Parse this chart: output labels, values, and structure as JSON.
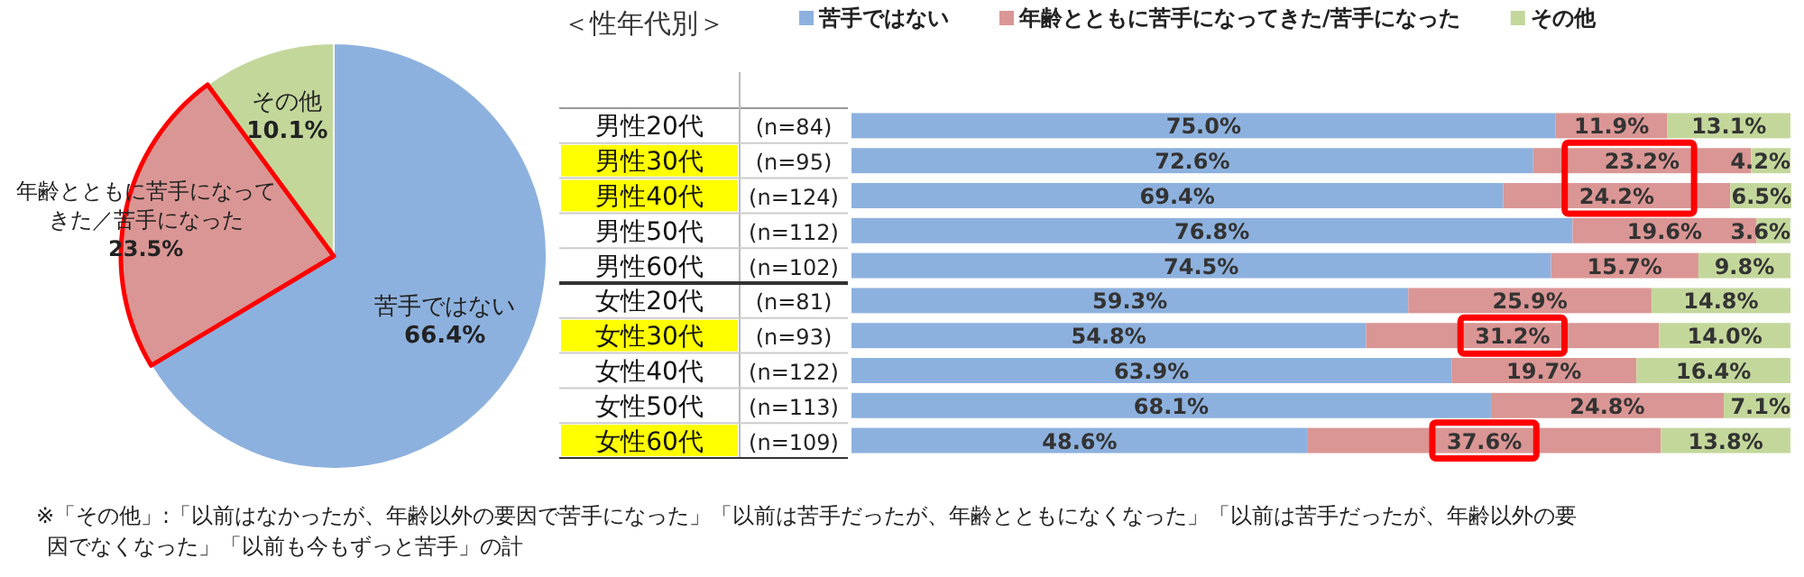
{
  "chart_data": [
    {
      "type": "pie",
      "categories": [
        "苦手ではない",
        "年齢とともに苦手になってきた／苦手になった",
        "その他"
      ],
      "values": [
        66.4,
        23.5,
        10.1
      ],
      "colors": [
        "#8db1de",
        "#da9694",
        "#c4d79b"
      ],
      "value_labels": [
        "66.4%",
        "23.5%",
        "10.1%"
      ]
    },
    {
      "type": "bar",
      "orientation": "horizontal",
      "stacked": true,
      "title": "＜性年代別＞",
      "legend": "top",
      "categories": [
        "男性20代 (n=84)",
        "男性30代 (n=95)",
        "男性40代 (n=124)",
        "男性50代 (n=112)",
        "男性60代 (n=102)",
        "女性20代 (n=81)",
        "女性30代 (n=93)",
        "女性40代 (n=122)",
        "女性50代 (n=113)",
        "女性60代 (n=109)"
      ],
      "series": [
        {
          "name": "苦手ではない",
          "color": "#8db1de",
          "values": [
            75.0,
            72.6,
            69.4,
            76.8,
            74.5,
            59.3,
            54.8,
            63.9,
            68.1,
            48.6
          ],
          "value_labels": [
            "75.0%",
            "72.6%",
            "69.4%",
            "76.8%",
            "74.5%",
            "59.3%",
            "54.8%",
            "63.9%",
            "68.1%",
            "48.6%"
          ]
        },
        {
          "name": "年齢とともに苦手になってきた/苦手になった",
          "color": "#da9694",
          "values": [
            11.9,
            23.2,
            24.2,
            19.6,
            15.7,
            25.9,
            31.2,
            19.7,
            24.8,
            37.6
          ],
          "value_labels": [
            "11.9%",
            "23.2%",
            "24.2%",
            "19.6%",
            "15.7%",
            "25.9%",
            "31.2%",
            "19.7%",
            "24.8%",
            "37.6%"
          ]
        },
        {
          "name": "その他",
          "color": "#c4d79b",
          "values": [
            13.1,
            4.2,
            6.5,
            3.6,
            9.8,
            14.8,
            14.0,
            16.4,
            7.1,
            13.8
          ],
          "value_labels": [
            "13.1%",
            "4.2%",
            "6.5%",
            "3.6%",
            "9.8%",
            "14.8%",
            "14.0%",
            "16.4%",
            "7.1%",
            "13.8%"
          ]
        }
      ],
      "annotations": [
        "※「その他」:「以前はなかったが、年齢以外の要因で苦手になった」「以前は苦手だったが、年齢とともになくなった」「以前は苦手だったが、年齢以外の要因でなくなった」「以前も今もずっと苦手」の計"
      ]
    }
  ]
}
